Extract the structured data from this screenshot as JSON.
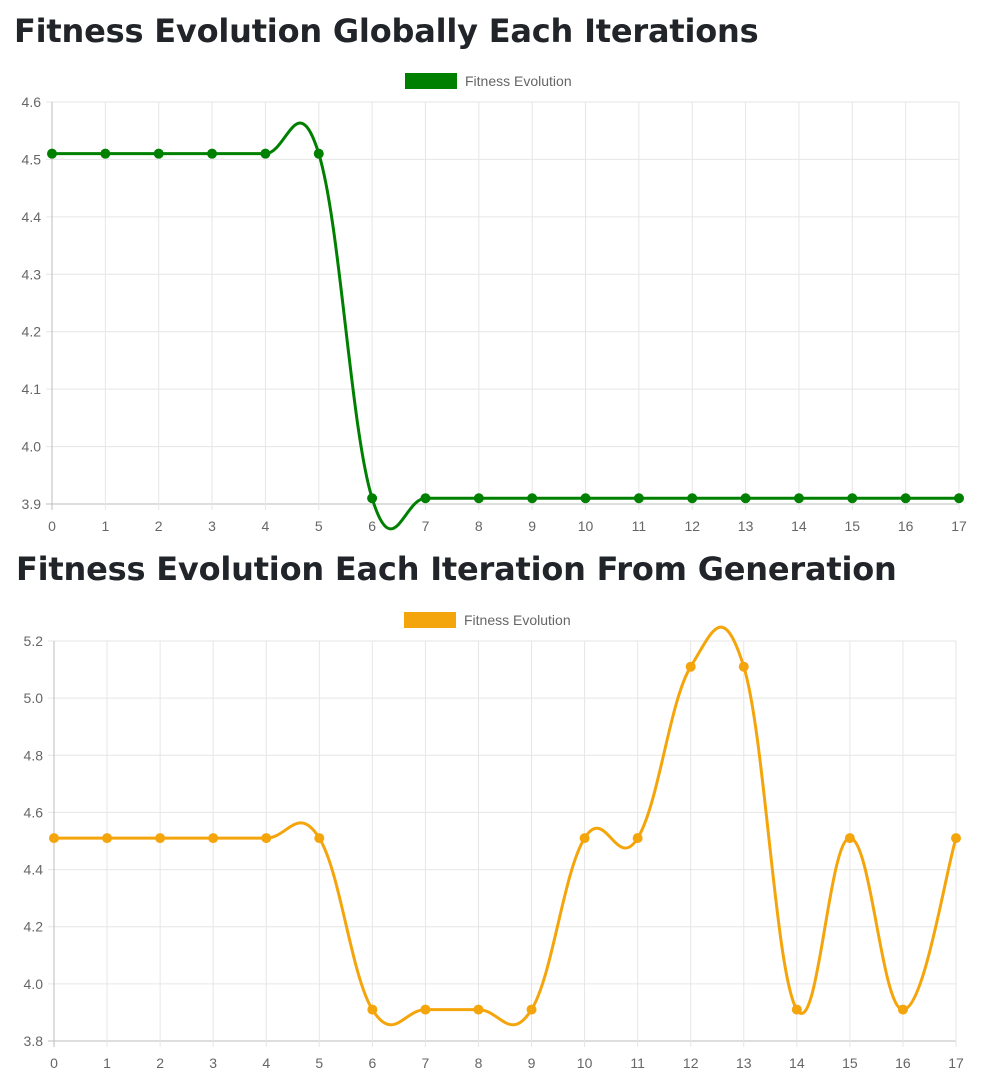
{
  "chart_data": [
    {
      "type": "line",
      "title": "Fitness Evolution Globally Each Iterations",
      "series": [
        {
          "name": "Fitness Evolution",
          "color": "#008000",
          "values": [
            4.51,
            4.51,
            4.51,
            4.51,
            4.51,
            4.51,
            3.91,
            3.91,
            3.91,
            3.91,
            3.91,
            3.91,
            3.91,
            3.91,
            3.91,
            3.91,
            3.91,
            3.91
          ]
        }
      ],
      "categories": [
        "0",
        "1",
        "2",
        "3",
        "4",
        "5",
        "6",
        "7",
        "8",
        "9",
        "10",
        "11",
        "12",
        "13",
        "14",
        "15",
        "16",
        "17"
      ],
      "yticks": [
        "3.9",
        "4.0",
        "4.1",
        "4.2",
        "4.3",
        "4.4",
        "4.5",
        "4.6"
      ],
      "ylim": [
        3.9,
        4.6
      ],
      "grid": true,
      "legend": "top-center"
    },
    {
      "type": "line",
      "title": "Fitness Evolution Each Iteration From Generation",
      "series": [
        {
          "name": "Fitness Evolution",
          "color": "#f5a50c",
          "values": [
            4.51,
            4.51,
            4.51,
            4.51,
            4.51,
            4.51,
            3.91,
            3.91,
            3.91,
            3.91,
            4.51,
            4.51,
            5.11,
            5.11,
            3.91,
            4.51,
            3.91,
            4.51
          ]
        }
      ],
      "categories": [
        "0",
        "1",
        "2",
        "3",
        "4",
        "5",
        "6",
        "7",
        "8",
        "9",
        "10",
        "11",
        "12",
        "13",
        "14",
        "15",
        "16",
        "17"
      ],
      "yticks": [
        "3.8",
        "4.0",
        "4.2",
        "4.4",
        "4.6",
        "4.8",
        "5.0",
        "5.2"
      ],
      "ylim": [
        3.8,
        5.2
      ],
      "grid": true,
      "legend": "top-center"
    }
  ]
}
